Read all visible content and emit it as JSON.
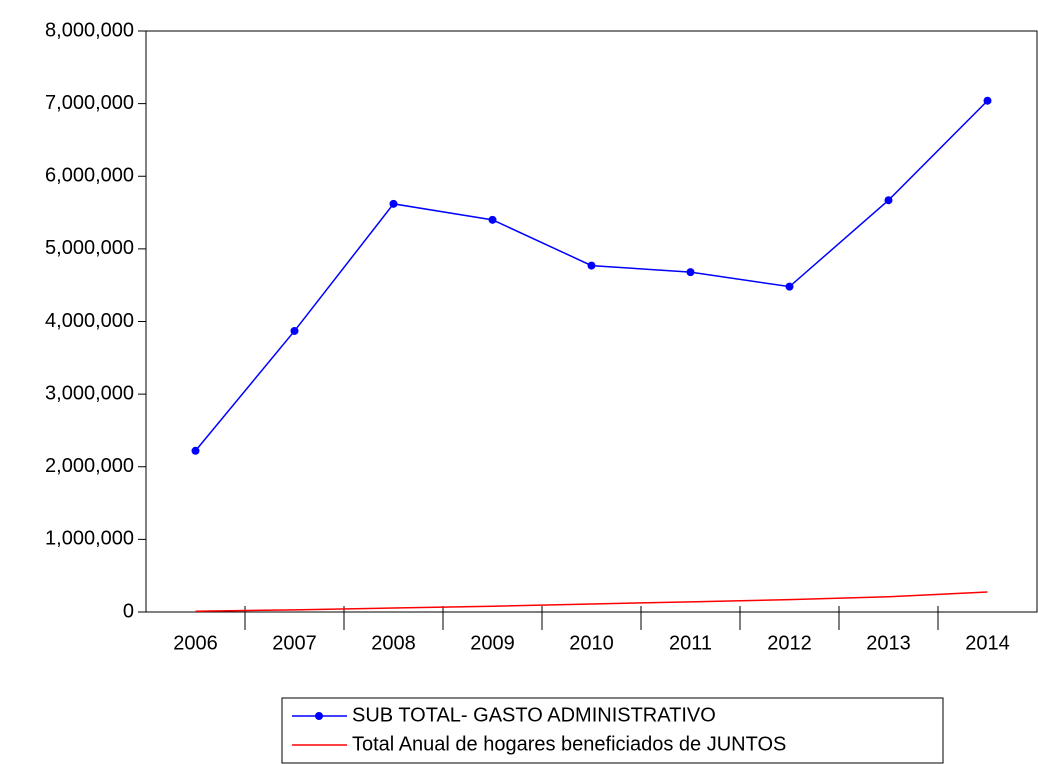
{
  "chart_data": {
    "type": "line",
    "categories": [
      "2006",
      "2007",
      "2008",
      "2009",
      "2010",
      "2011",
      "2012",
      "2013",
      "2014"
    ],
    "series": [
      {
        "name": "SUB TOTAL- GASTO ADMINISTRATIVO",
        "color": "#0000ff",
        "marker": true,
        "values": [
          2220000,
          3870000,
          5620000,
          5400000,
          4770000,
          4680000,
          4480000,
          5670000,
          7040000
        ]
      },
      {
        "name": "Total Anual de hogares beneficiados de JUNTOS",
        "color": "#ff0000",
        "marker": false,
        "values": [
          10000,
          30000,
          55000,
          80000,
          110000,
          140000,
          170000,
          210000,
          275000
        ]
      }
    ],
    "ylim": [
      0,
      8000000
    ],
    "yticks": [
      0,
      {
        "value": 1000000,
        "label": "1,000,000"
      },
      {
        "value": 2000000,
        "label": "2,000,000"
      },
      {
        "value": 3000000,
        "label": "3,000,000"
      },
      {
        "value": 4000000,
        "label": "4,000,000"
      },
      {
        "value": 5000000,
        "label": "5,000,000"
      },
      {
        "value": 6000000,
        "label": "6,000,000"
      },
      {
        "value": 7000000,
        "label": "7,000,000"
      },
      {
        "value": 8000000,
        "label": "8,000,000"
      }
    ],
    "legend": "bottom",
    "grid": false
  }
}
